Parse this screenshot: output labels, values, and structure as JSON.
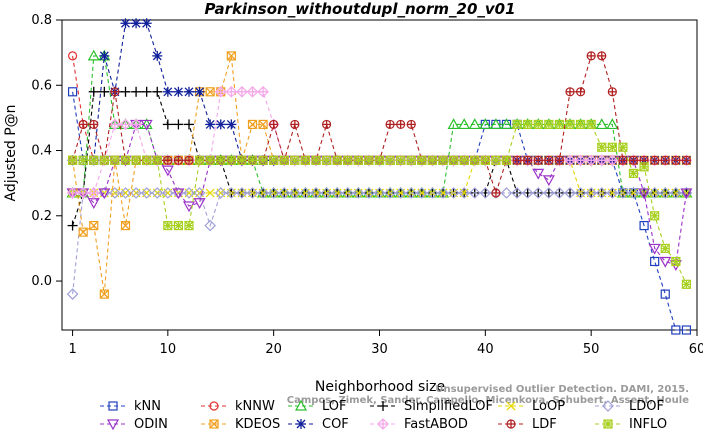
{
  "chart_data": {
    "type": "line",
    "title": "Parkinson_withoutdupl_norm_20_v01",
    "xlabel": "Neighborhood size",
    "ylabel": "Adjusted P@n",
    "xlim": [
      0,
      60
    ],
    "ylim": [
      -0.15,
      0.8
    ],
    "xticks": [
      1,
      10,
      20,
      30,
      40,
      50,
      60
    ],
    "yticks": [
      0.0,
      0.2,
      0.4,
      0.6,
      0.8
    ],
    "grid": false,
    "legend_position": "bottom",
    "watermark": [
      "Unsupervised Outlier Detection. DAMI, 2015.",
      "Campos, Zimek, Sander, Campello, Micenkova, Schubert, Assent, Houle"
    ],
    "x": [
      1,
      2,
      3,
      4,
      5,
      6,
      7,
      8,
      9,
      10,
      11,
      12,
      13,
      14,
      15,
      16,
      17,
      18,
      19,
      20,
      21,
      22,
      23,
      24,
      25,
      26,
      27,
      28,
      29,
      30,
      31,
      32,
      33,
      34,
      35,
      36,
      37,
      38,
      39,
      40,
      41,
      42,
      43,
      44,
      45,
      46,
      47,
      48,
      49,
      50,
      51,
      52,
      53,
      54,
      55,
      56,
      57,
      58,
      59
    ],
    "series": [
      {
        "name": "kNN",
        "color": "#1f3fbf",
        "marker": "square",
        "values": [
          0.58,
          0.37,
          0.37,
          0.37,
          0.37,
          0.37,
          0.37,
          0.37,
          0.37,
          0.37,
          0.37,
          0.37,
          0.37,
          0.37,
          0.37,
          0.37,
          0.37,
          0.37,
          0.37,
          0.37,
          0.37,
          0.37,
          0.37,
          0.37,
          0.37,
          0.37,
          0.37,
          0.37,
          0.37,
          0.37,
          0.37,
          0.37,
          0.37,
          0.37,
          0.37,
          0.37,
          0.37,
          0.37,
          0.37,
          0.48,
          0.48,
          0.48,
          0.48,
          0.37,
          0.37,
          0.37,
          0.37,
          0.37,
          0.37,
          0.37,
          0.37,
          0.37,
          0.27,
          0.27,
          0.17,
          0.06,
          -0.04,
          -0.15,
          -0.15
        ]
      },
      {
        "name": "kNNW",
        "color": "#e03030",
        "marker": "circle",
        "values": [
          0.69,
          0.48,
          0.37,
          0.37,
          0.37,
          0.37,
          0.37,
          0.37,
          0.37,
          0.37,
          0.37,
          0.37,
          0.37,
          0.37,
          0.37,
          0.37,
          0.37,
          0.37,
          0.37,
          0.37,
          0.37,
          0.37,
          0.37,
          0.37,
          0.37,
          0.37,
          0.37,
          0.37,
          0.37,
          0.37,
          0.37,
          0.37,
          0.37,
          0.37,
          0.37,
          0.37,
          0.37,
          0.37,
          0.37,
          0.37,
          0.37,
          0.37,
          0.37,
          0.37,
          0.37,
          0.37,
          0.37,
          0.37,
          0.37,
          0.37,
          0.37,
          0.37,
          0.37,
          0.37,
          0.37,
          0.37,
          0.37,
          0.37,
          0.37
        ]
      },
      {
        "name": "LOF",
        "color": "#2bbf2b",
        "marker": "triangle-up",
        "values": [
          0.27,
          0.27,
          0.69,
          0.69,
          0.48,
          0.48,
          0.48,
          0.48,
          0.37,
          0.37,
          0.37,
          0.37,
          0.37,
          0.37,
          0.37,
          0.37,
          0.37,
          0.37,
          0.27,
          0.27,
          0.27,
          0.27,
          0.27,
          0.27,
          0.27,
          0.27,
          0.27,
          0.27,
          0.27,
          0.27,
          0.27,
          0.27,
          0.27,
          0.27,
          0.27,
          0.27,
          0.48,
          0.48,
          0.48,
          0.48,
          0.48,
          0.48,
          0.48,
          0.48,
          0.48,
          0.48,
          0.48,
          0.48,
          0.48,
          0.48,
          0.48,
          0.48,
          0.27,
          0.27,
          0.27,
          0.27,
          0.27,
          0.27,
          0.27
        ]
      },
      {
        "name": "SimplifiedLOF",
        "color": "#000000",
        "marker": "plus",
        "values": [
          0.17,
          0.27,
          0.58,
          0.58,
          0.58,
          0.58,
          0.58,
          0.58,
          0.58,
          0.48,
          0.48,
          0.48,
          0.37,
          0.37,
          0.37,
          0.27,
          0.27,
          0.27,
          0.27,
          0.27,
          0.27,
          0.27,
          0.27,
          0.27,
          0.27,
          0.27,
          0.27,
          0.27,
          0.27,
          0.27,
          0.27,
          0.27,
          0.27,
          0.27,
          0.27,
          0.27,
          0.27,
          0.27,
          0.27,
          0.27,
          0.37,
          0.37,
          0.27,
          0.27,
          0.27,
          0.27,
          0.27,
          0.27,
          0.27,
          0.27,
          0.27,
          0.27,
          0.27,
          0.27,
          0.27,
          0.27,
          0.27,
          0.27,
          0.27
        ]
      },
      {
        "name": "LoOP",
        "color": "#e6d800",
        "marker": "cross",
        "values": [
          0.27,
          0.27,
          0.27,
          0.27,
          0.27,
          0.27,
          0.27,
          0.27,
          0.27,
          0.27,
          0.27,
          0.27,
          0.27,
          0.27,
          0.27,
          0.27,
          0.27,
          0.27,
          0.27,
          0.27,
          0.27,
          0.27,
          0.27,
          0.27,
          0.27,
          0.27,
          0.27,
          0.27,
          0.27,
          0.27,
          0.27,
          0.27,
          0.27,
          0.27,
          0.27,
          0.27,
          0.27,
          0.27,
          0.37,
          0.37,
          0.37,
          0.37,
          0.37,
          0.37,
          0.37,
          0.37,
          0.37,
          0.37,
          0.27,
          0.27,
          0.27,
          0.27,
          0.27,
          0.27,
          0.27,
          0.27,
          0.27,
          0.27,
          0.27
        ]
      },
      {
        "name": "LDOF",
        "color": "#a0a0d8",
        "marker": "diamond",
        "values": [
          -0.04,
          0.27,
          0.27,
          0.27,
          0.27,
          0.27,
          0.27,
          0.27,
          0.27,
          0.27,
          0.27,
          0.27,
          0.27,
          0.17,
          0.27,
          0.27,
          0.27,
          0.27,
          0.27,
          0.27,
          0.27,
          0.27,
          0.27,
          0.27,
          0.27,
          0.27,
          0.27,
          0.27,
          0.27,
          0.27,
          0.27,
          0.27,
          0.27,
          0.27,
          0.27,
          0.27,
          0.27,
          0.27,
          0.27,
          0.27,
          0.27,
          0.27,
          0.27,
          0.27,
          0.27,
          0.27,
          0.27,
          0.27,
          0.27,
          0.27,
          0.27,
          0.27,
          0.27,
          0.27,
          0.27,
          0.27,
          0.27,
          0.27,
          0.27
        ]
      },
      {
        "name": "ODIN",
        "color": "#9b30c8",
        "marker": "triangle-down",
        "values": [
          0.27,
          0.27,
          0.24,
          0.27,
          0.37,
          0.37,
          0.48,
          0.48,
          0.37,
          0.34,
          0.27,
          0.23,
          0.24,
          0.37,
          0.37,
          0.37,
          0.37,
          0.37,
          0.37,
          0.37,
          0.37,
          0.37,
          0.37,
          0.37,
          0.37,
          0.37,
          0.37,
          0.37,
          0.37,
          0.37,
          0.37,
          0.37,
          0.37,
          0.37,
          0.37,
          0.37,
          0.37,
          0.37,
          0.37,
          0.37,
          0.37,
          0.37,
          0.37,
          0.37,
          0.33,
          0.31,
          0.37,
          0.37,
          0.37,
          0.37,
          0.37,
          0.37,
          0.37,
          0.37,
          0.27,
          0.1,
          0.06,
          0.05,
          0.27
        ]
      },
      {
        "name": "KDEOS",
        "color": "#f0a020",
        "marker": "square-x",
        "values": [
          0.37,
          0.15,
          0.17,
          -0.04,
          0.37,
          0.17,
          0.37,
          0.37,
          0.37,
          0.37,
          0.37,
          0.37,
          0.58,
          0.58,
          0.58,
          0.69,
          0.37,
          0.48,
          0.48,
          0.37,
          0.37,
          0.37,
          0.37,
          0.37,
          0.37,
          0.37,
          0.37,
          0.37,
          0.37,
          0.37,
          0.37,
          0.37,
          0.37,
          0.37,
          0.37,
          0.37,
          0.37,
          0.37,
          0.37,
          0.37,
          0.37,
          0.37,
          0.37,
          0.37,
          0.37,
          0.37,
          0.37,
          0.37,
          0.37,
          0.37,
          0.37,
          0.37,
          0.37,
          0.37,
          0.37,
          0.37,
          0.37,
          0.37,
          0.37
        ]
      },
      {
        "name": "COF",
        "color": "#10209a",
        "marker": "asterisk",
        "values": [
          0.37,
          0.37,
          0.37,
          0.69,
          0.58,
          0.79,
          0.79,
          0.79,
          0.69,
          0.58,
          0.58,
          0.58,
          0.58,
          0.48,
          0.48,
          0.48,
          0.37,
          0.37,
          0.37,
          0.37,
          0.37,
          0.37,
          0.37,
          0.37,
          0.37,
          0.37,
          0.37,
          0.37,
          0.37,
          0.37,
          0.37,
          0.37,
          0.37,
          0.37,
          0.37,
          0.37,
          0.37,
          0.37,
          0.37,
          0.37,
          0.37,
          0.37,
          0.37,
          0.37,
          0.37,
          0.37,
          0.37,
          0.37,
          0.37,
          0.37,
          0.37,
          0.37,
          0.37,
          0.37,
          0.37,
          0.37,
          0.37,
          0.37,
          0.37
        ]
      },
      {
        "name": "FastABOD",
        "color": "#f4a8e8",
        "marker": "diamond-plus",
        "values": [
          0.27,
          0.27,
          0.27,
          0.37,
          0.48,
          0.48,
          0.48,
          0.37,
          0.37,
          0.37,
          0.37,
          0.37,
          0.37,
          0.37,
          0.58,
          0.58,
          0.58,
          0.58,
          0.58,
          0.48,
          0.37,
          0.37,
          0.37,
          0.37,
          0.37,
          0.37,
          0.37,
          0.37,
          0.37,
          0.37,
          0.37,
          0.37,
          0.37,
          0.37,
          0.37,
          0.37,
          0.37,
          0.37,
          0.37,
          0.37,
          0.37,
          0.37,
          0.37,
          0.37,
          0.37,
          0.37,
          0.37,
          0.37,
          0.37,
          0.37,
          0.37,
          0.37,
          0.37,
          0.37,
          0.37,
          0.37,
          0.37,
          0.37,
          0.37
        ]
      },
      {
        "name": "LDF",
        "color": "#b02020",
        "marker": "circle-plus",
        "values": [
          0.37,
          0.48,
          0.48,
          0.37,
          0.58,
          0.37,
          0.37,
          0.37,
          0.37,
          0.37,
          0.37,
          0.37,
          0.37,
          0.37,
          0.37,
          0.37,
          0.37,
          0.37,
          0.37,
          0.48,
          0.37,
          0.48,
          0.37,
          0.37,
          0.48,
          0.37,
          0.37,
          0.37,
          0.37,
          0.37,
          0.48,
          0.48,
          0.48,
          0.37,
          0.37,
          0.37,
          0.37,
          0.37,
          0.37,
          0.37,
          0.27,
          0.37,
          0.37,
          0.37,
          0.37,
          0.37,
          0.37,
          0.58,
          0.58,
          0.69,
          0.69,
          0.58,
          0.37,
          0.37,
          0.37,
          0.37,
          0.37,
          0.37,
          0.37
        ]
      },
      {
        "name": "INFLO",
        "color": "#a8d020",
        "marker": "star-square",
        "values": [
          0.37,
          0.37,
          0.37,
          0.37,
          0.37,
          0.37,
          0.37,
          0.37,
          0.37,
          0.17,
          0.17,
          0.17,
          0.37,
          0.37,
          0.37,
          0.37,
          0.37,
          0.37,
          0.37,
          0.37,
          0.37,
          0.37,
          0.37,
          0.37,
          0.37,
          0.37,
          0.37,
          0.37,
          0.37,
          0.37,
          0.37,
          0.37,
          0.37,
          0.37,
          0.37,
          0.37,
          0.37,
          0.37,
          0.37,
          0.37,
          0.37,
          0.37,
          0.48,
          0.48,
          0.48,
          0.48,
          0.48,
          0.48,
          0.48,
          0.48,
          0.41,
          0.41,
          0.41,
          0.33,
          0.35,
          0.2,
          0.1,
          0.06,
          -0.01
        ]
      }
    ]
  }
}
